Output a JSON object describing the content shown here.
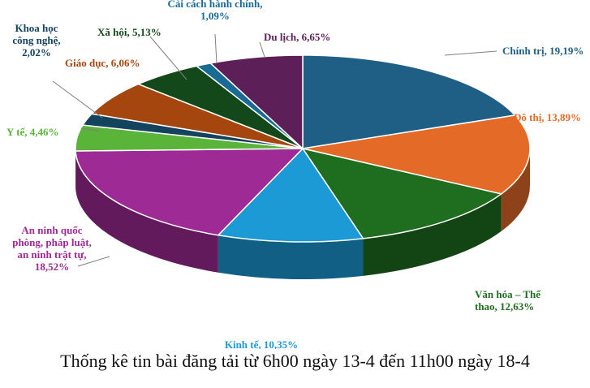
{
  "caption": "Thống kê tin bài đăng tải từ 6h00 ngày 13-4 đến 11h00 ngày 18-4",
  "chart_data": {
    "type": "pie",
    "title": "",
    "unit": "%",
    "slices": [
      {
        "name": "Chính trị",
        "value": 19.19,
        "label": [
          "Chính trị, 19,19%"
        ],
        "color": "#1f5f86"
      },
      {
        "name": "Đô thị",
        "value": 13.89,
        "label": [
          "Đô thị, 13,89%"
        ],
        "color": "#e46a28"
      },
      {
        "name": "Văn hóa – Thể thao",
        "value": 12.63,
        "label": [
          "Văn hóa – Thể",
          "thao, 12,63%"
        ],
        "color": "#1f6e1f"
      },
      {
        "name": "Kinh tế",
        "value": 10.35,
        "label": [
          "Kinh tế, 10,35%"
        ],
        "color": "#1b9ad6"
      },
      {
        "name": "An ninh quốc phòng, pháp luật, an ninh trật tự",
        "value": 18.52,
        "label": [
          "An ninh quốc",
          "phòng, pháp luật,",
          "an ninh trật tự,",
          "18,52%"
        ],
        "color": "#9e2a95"
      },
      {
        "name": "Y tế",
        "value": 4.46,
        "label": [
          "Y tế, 4,46%"
        ],
        "color": "#5bb43a"
      },
      {
        "name": "Khoa học công nghệ",
        "value": 2.02,
        "label": [
          "Khoa học",
          "công nghệ,",
          "2,02%"
        ],
        "color": "#14435e"
      },
      {
        "name": "Giáo dục",
        "value": 6.06,
        "label": [
          "Giáo dục, 6,06%"
        ],
        "color": "#a6460f"
      },
      {
        "name": "Xã hội",
        "value": 5.13,
        "label": [
          "Xã hội, 5,13%"
        ],
        "color": "#13491a"
      },
      {
        "name": "Cải cách hành chính",
        "value": 1.09,
        "label": [
          "Cải cách hành chính,",
          "1,09%"
        ],
        "color": "#176b94"
      },
      {
        "name": "Du lịch",
        "value": 6.65,
        "label": [
          "Du lịch, 6,65%"
        ],
        "color": "#5c1f57"
      }
    ]
  }
}
